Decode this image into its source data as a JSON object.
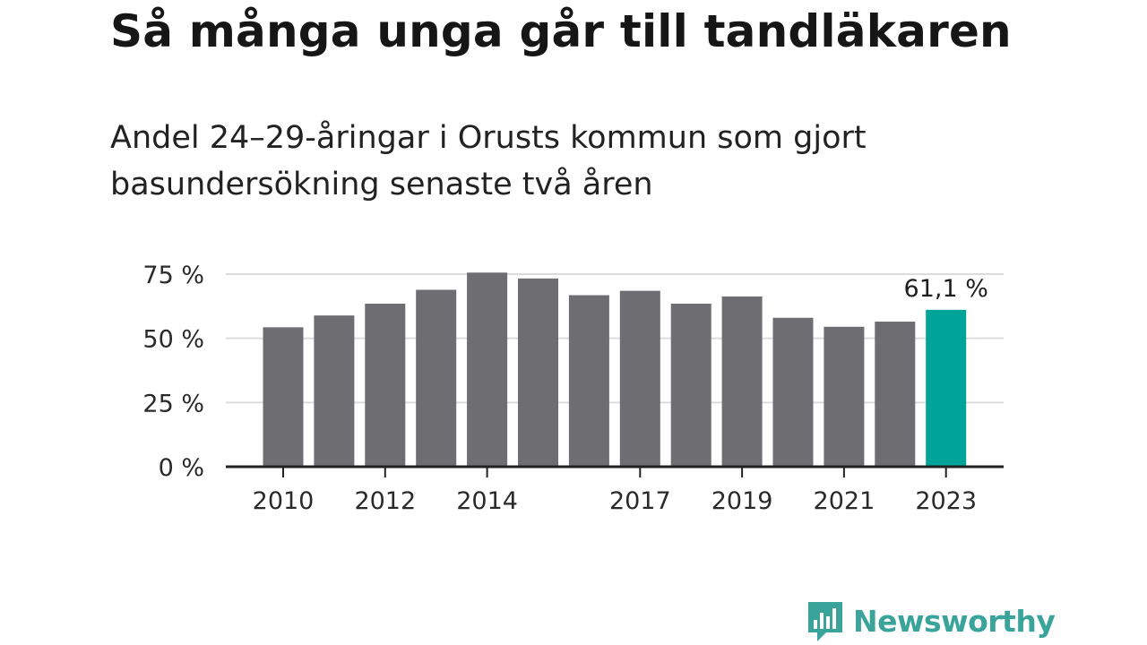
{
  "title": "Så många unga går till tandläkaren",
  "subtitle": "Andel 24–29-åringar i Orusts kommun som gjort basundersökning senaste två åren",
  "brand": {
    "name": "Newsworthy",
    "icon": "newsworthy-chart-bubble-icon",
    "color": "#3aa49b"
  },
  "chart_data": {
    "type": "bar",
    "title": "Så många unga går till tandläkaren",
    "categories": [
      "2010",
      "2011",
      "2012",
      "2013",
      "2014",
      "2015",
      "2016",
      "2017",
      "2018",
      "2019",
      "2020",
      "2021",
      "2022",
      "2023"
    ],
    "x_tick_labels": [
      "2010",
      "",
      "2012",
      "",
      "2014",
      "",
      "",
      "2017",
      "",
      "2019",
      "",
      "2021",
      "",
      "2023"
    ],
    "values": [
      54.3,
      58.9,
      63.5,
      68.9,
      75.6,
      73.3,
      66.8,
      68.5,
      63.5,
      66.3,
      58.0,
      54.5,
      56.5,
      61.1
    ],
    "ylim": [
      0,
      80
    ],
    "y_ticks": [
      0,
      25,
      50,
      75
    ],
    "y_tick_labels": [
      "0 %",
      "25 %",
      "50 %",
      "75 %"
    ],
    "highlight_index": 13,
    "highlight_label": "61,1 %",
    "grid": true,
    "colors": {
      "bar": "#6e6d72",
      "highlight": "#00a398",
      "grid": "#dcdcdc",
      "axis": "#222222"
    }
  }
}
